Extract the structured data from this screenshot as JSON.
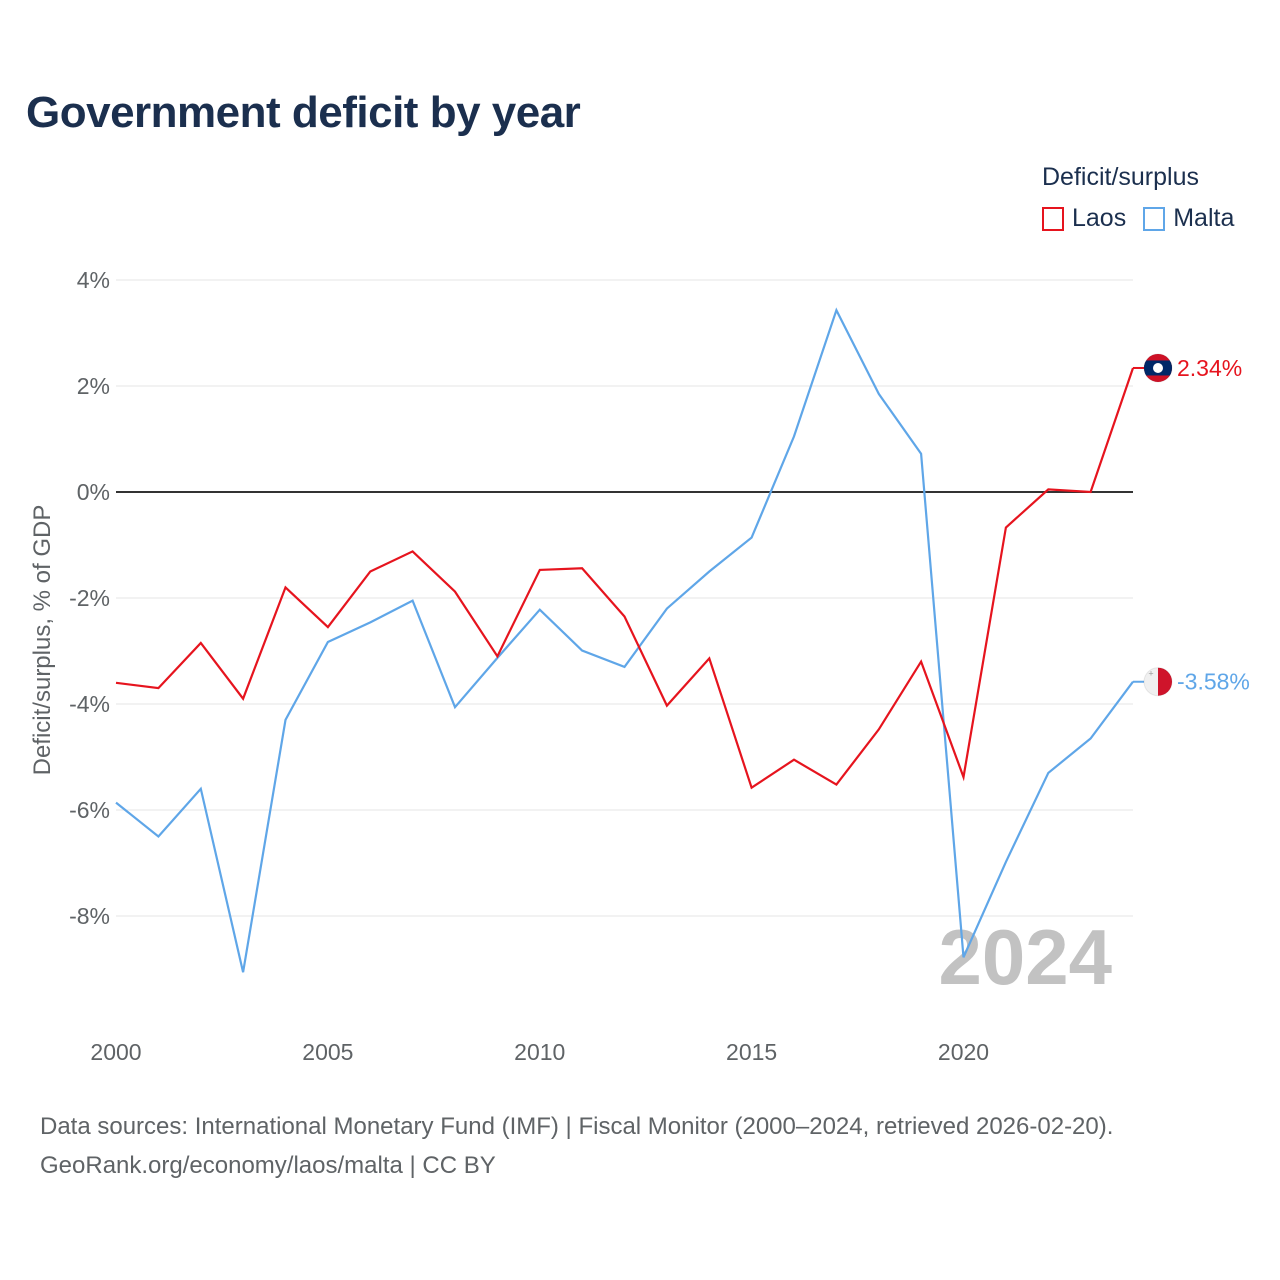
{
  "title": "Government deficit by year",
  "legend": {
    "title": "Deficit/surplus",
    "items": [
      {
        "name": "Laos",
        "color": "#e6141e"
      },
      {
        "name": "Malta",
        "color": "#5fa6e8"
      }
    ]
  },
  "chart_data": {
    "type": "line",
    "title": "Government deficit by year",
    "xlabel": "",
    "ylabel": "Deficit/surplus, % of GDP",
    "xlim": [
      2000,
      2024
    ],
    "ylim": [
      -10,
      4
    ],
    "yticks": [
      4,
      2,
      0,
      -2,
      -4,
      -6,
      -8
    ],
    "ytick_labels": [
      "4%",
      "2%",
      "0%",
      "-2%",
      "-4%",
      "-6%",
      "-8%"
    ],
    "xticks": [
      2000,
      2005,
      2010,
      2015,
      2020
    ],
    "xtick_labels": [
      "2000",
      "2005",
      "2010",
      "2015",
      "2020"
    ],
    "x": [
      2000,
      2001,
      2002,
      2003,
      2004,
      2005,
      2006,
      2007,
      2008,
      2009,
      2010,
      2011,
      2012,
      2013,
      2014,
      2015,
      2016,
      2017,
      2018,
      2019,
      2020,
      2021,
      2022,
      2023,
      2024
    ],
    "series": [
      {
        "name": "Laos",
        "color": "#e6141e",
        "end_label": "2.34%",
        "flag": "laos-flag-icon",
        "values": [
          -3.6,
          -3.7,
          -2.85,
          -3.9,
          -1.8,
          -2.55,
          -1.5,
          -1.12,
          -1.88,
          -3.1,
          -1.47,
          -1.44,
          -2.35,
          -4.03,
          -3.14,
          -5.58,
          -5.05,
          -5.52,
          -4.48,
          -3.2,
          -5.38,
          -0.67,
          0.05,
          0.0,
          2.34
        ]
      },
      {
        "name": "Malta",
        "color": "#5fa6e8",
        "end_label": "-3.58%",
        "flag": "malta-flag-icon",
        "values": [
          -5.86,
          -6.5,
          -5.6,
          -9.06,
          -4.3,
          -2.83,
          -2.46,
          -2.05,
          -4.06,
          -3.13,
          -2.22,
          -2.99,
          -3.3,
          -2.2,
          -1.5,
          -0.86,
          1.05,
          3.43,
          1.85,
          0.72,
          -8.78,
          -6.98,
          -5.3,
          -4.65,
          -3.58
        ]
      }
    ],
    "watermark": "2024"
  },
  "source": {
    "line1": "Data sources: International Monetary Fund (IMF) | Fiscal Monitor (2000–2024, retrieved 2026-02-20).",
    "line2": "GeoRank.org/economy/laos/malta | CC BY"
  }
}
